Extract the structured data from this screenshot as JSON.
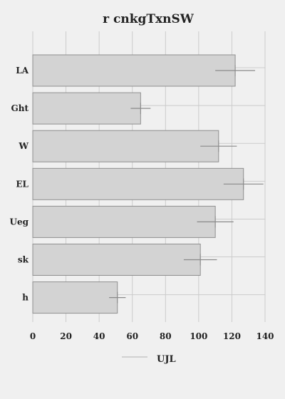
{
  "chart_data": {
    "type": "bar",
    "orientation": "horizontal",
    "title": "r cnkgTxnSW",
    "categories": [
      "LA",
      "Ght",
      "W",
      "EL",
      "Ueg",
      "sk",
      "h"
    ],
    "series": [
      {
        "name": "UJL",
        "values": [
          122,
          65,
          112,
          127,
          110,
          101,
          51
        ],
        "error": [
          12,
          6,
          11,
          12,
          11,
          10,
          5
        ]
      }
    ],
    "xlim": [
      0,
      140
    ],
    "xticks": [
      0,
      20,
      40,
      60,
      80,
      100,
      120,
      140
    ],
    "grid": true,
    "legend_position": "bottom",
    "colors": {
      "bar_fill": "#d3d3d3",
      "bar_stroke": "#8f8f8f",
      "error": "#8a8a8a",
      "grid": "#cbcbcb",
      "background": "#f0f0f0"
    }
  }
}
